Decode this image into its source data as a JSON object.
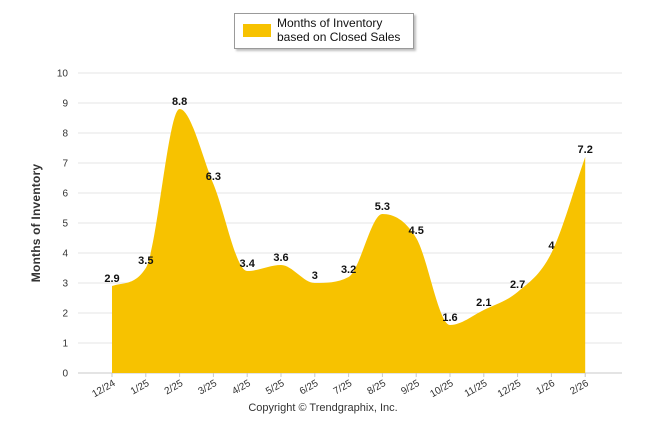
{
  "chart_data": {
    "type": "area",
    "series_name": "Months of Inventory based on Closed Sales",
    "categories": [
      "12/24",
      "1/25",
      "2/25",
      "3/25",
      "4/25",
      "5/25",
      "6/25",
      "7/25",
      "8/25",
      "9/25",
      "10/25",
      "11/25",
      "12/25",
      "1/26",
      "2/26"
    ],
    "values": [
      2.9,
      3.5,
      8.8,
      6.3,
      3.4,
      3.6,
      3,
      3.2,
      5.3,
      4.5,
      1.6,
      2.1,
      2.7,
      4,
      7.2
    ],
    "ylabel": "Months of Inventory",
    "xlabel": "",
    "ylim": [
      0,
      10
    ],
    "yticks": [
      0,
      1,
      2,
      3,
      4,
      5,
      6,
      7,
      8,
      9,
      10
    ],
    "grid": true,
    "legend": "top-center",
    "color": "#f7c200",
    "footer": "Copyright © Trendgraphix, Inc."
  }
}
